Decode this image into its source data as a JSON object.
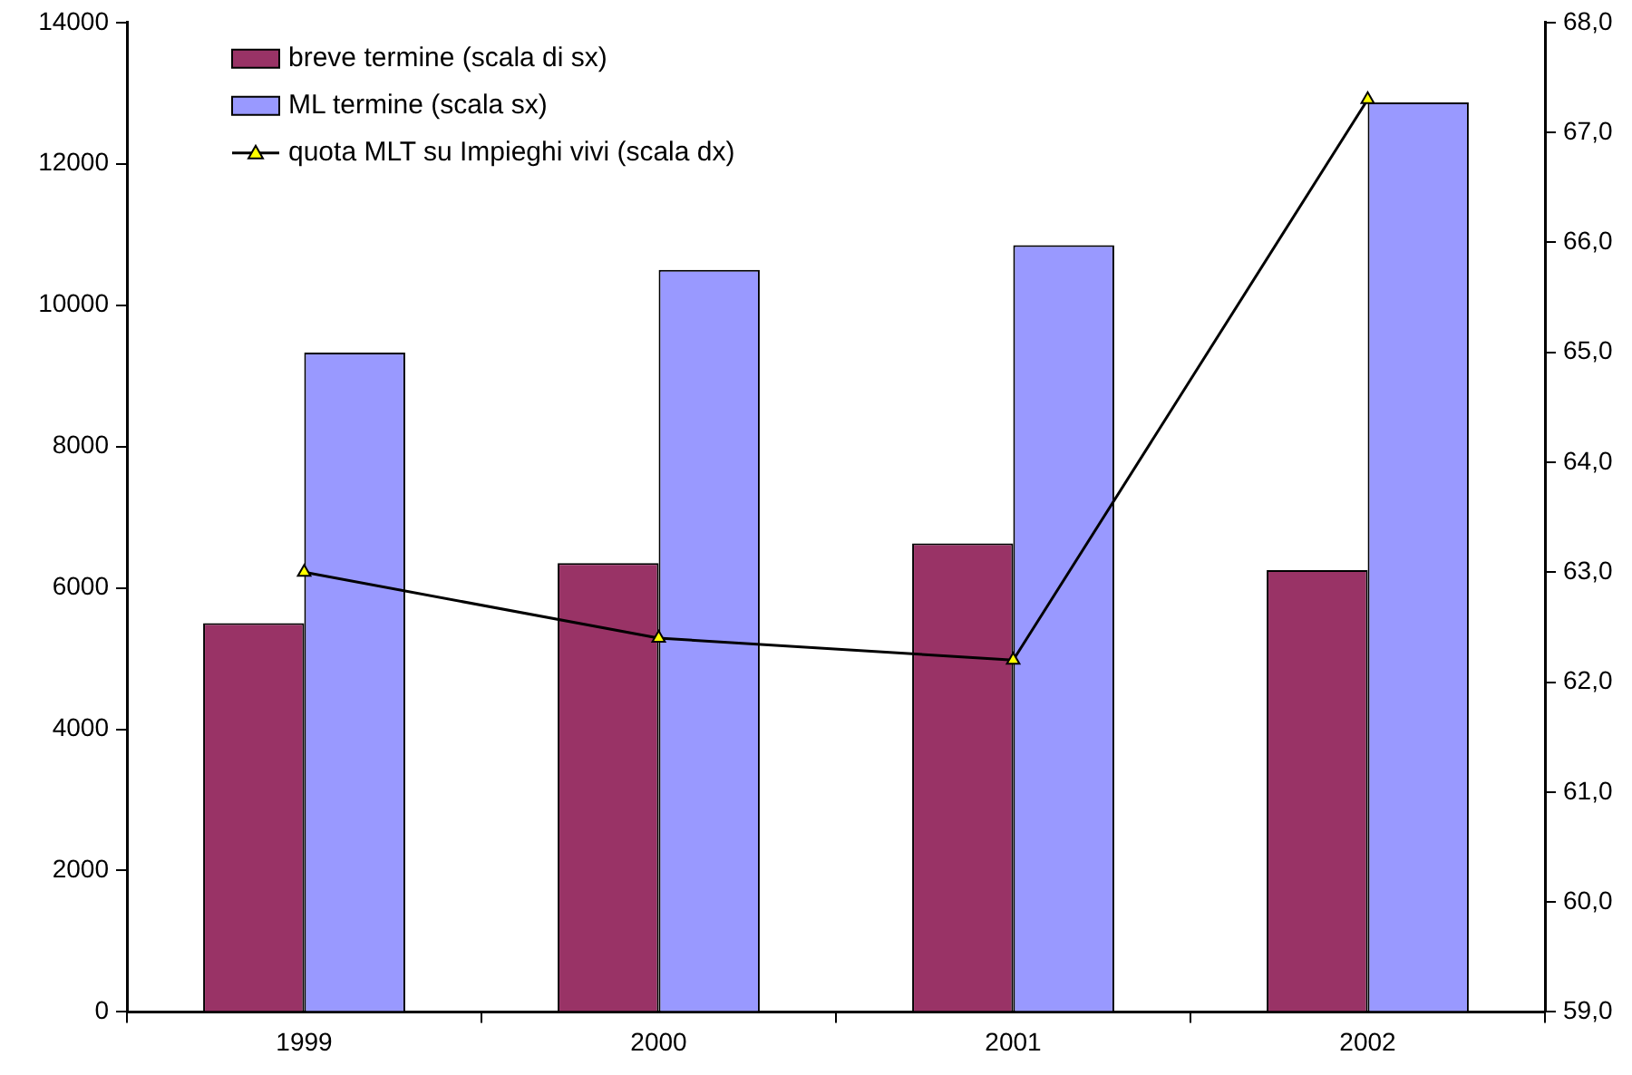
{
  "chart_data": {
    "type": "bar",
    "categories": [
      "1999",
      "2000",
      "2001",
      "2002"
    ],
    "series": [
      {
        "name": "breve termine (scala di sx)",
        "color": "#993366",
        "values": [
          5500,
          6350,
          6630,
          6250
        ]
      },
      {
        "name": "ML termine (scala sx)",
        "color": "#9999ff",
        "values": [
          9330,
          10500,
          10850,
          12870
        ]
      },
      {
        "name": "quota MLT su Impieghi vivi (scala dx)",
        "type": "line",
        "axis": "y2",
        "color": "#000000",
        "marker": "triangle",
        "values": [
          63.0,
          62.4,
          62.2,
          67.3
        ]
      }
    ],
    "ylim": [
      0,
      14000
    ],
    "yticks": [
      0,
      2000,
      4000,
      6000,
      8000,
      10000,
      12000,
      14000
    ],
    "y2lim": [
      59,
      68
    ],
    "y2ticks": [
      {
        "value": 59,
        "label": "59,0"
      },
      {
        "value": 60,
        "label": "60,0"
      },
      {
        "value": 61,
        "label": "61,0"
      },
      {
        "value": 62,
        "label": "62,0"
      },
      {
        "value": 63,
        "label": "63,0"
      },
      {
        "value": 64,
        "label": "64,0"
      },
      {
        "value": 65,
        "label": "65,0"
      },
      {
        "value": 66,
        "label": "66,0"
      },
      {
        "value": 67,
        "label": "67,0"
      },
      {
        "value": 68,
        "label": "68,0"
      }
    ],
    "legend": "top left"
  }
}
